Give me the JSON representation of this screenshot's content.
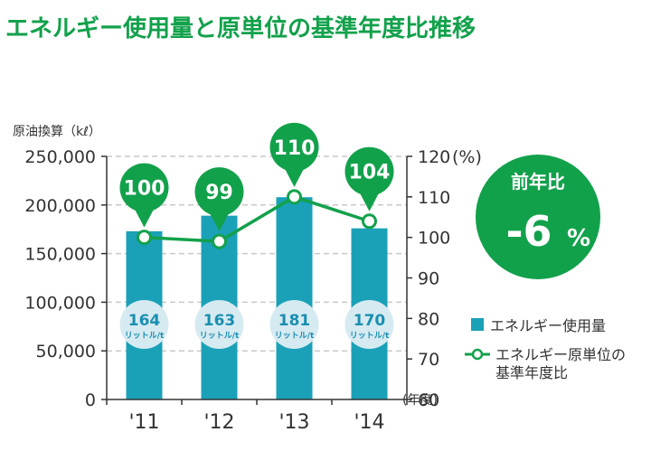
{
  "colors": {
    "bar": "#1aa1b8",
    "line": "#12a14b",
    "title": "#12a14b",
    "badge": "#12a14b",
    "unit_circle": "#d6eaf1",
    "unit_text": "#1a8fb0",
    "grid": "#c9c9c9"
  },
  "chart_data": {
    "type": "bar",
    "title": "エネルギー使用量と原単位の基準年度比推移",
    "ylabel": "原油換算（kℓ）",
    "y2label": "(%)",
    "xunit": "(年度)",
    "categories": [
      "'11",
      "'12",
      "'13",
      "'14"
    ],
    "ylim": [
      0,
      250000
    ],
    "yticks": [
      0,
      50000,
      100000,
      150000,
      200000,
      250000
    ],
    "ytick_labels": [
      "0",
      "50,000",
      "100,000",
      "150,000",
      "200,000",
      "250,000"
    ],
    "y2lim": [
      60,
      120
    ],
    "y2ticks": [
      60,
      70,
      80,
      90,
      100,
      110,
      120
    ],
    "y2tick_labels": [
      "60",
      "70",
      "80",
      "90",
      "100",
      "110",
      "120"
    ],
    "grid": true,
    "series": [
      {
        "name": "エネルギー使用量",
        "type": "bar",
        "axis": "left",
        "values": [
          173000,
          189000,
          208000,
          176000
        ]
      },
      {
        "name": "エネルギー原単位の基準年度比",
        "type": "line",
        "axis": "right",
        "values": [
          100,
          99,
          110,
          104
        ]
      }
    ],
    "data_labels": [
      "100",
      "99",
      "110",
      "104"
    ],
    "unit_values": [
      "164",
      "163",
      "181",
      "170"
    ],
    "unit_label": "リットル/t",
    "badge": {
      "label": "前年比",
      "value": "-6",
      "unit": "%"
    },
    "legend": [
      {
        "label": "エネルギー使用量"
      },
      {
        "label": "エネルギー原単位の",
        "label2": "基準年度比"
      }
    ]
  }
}
